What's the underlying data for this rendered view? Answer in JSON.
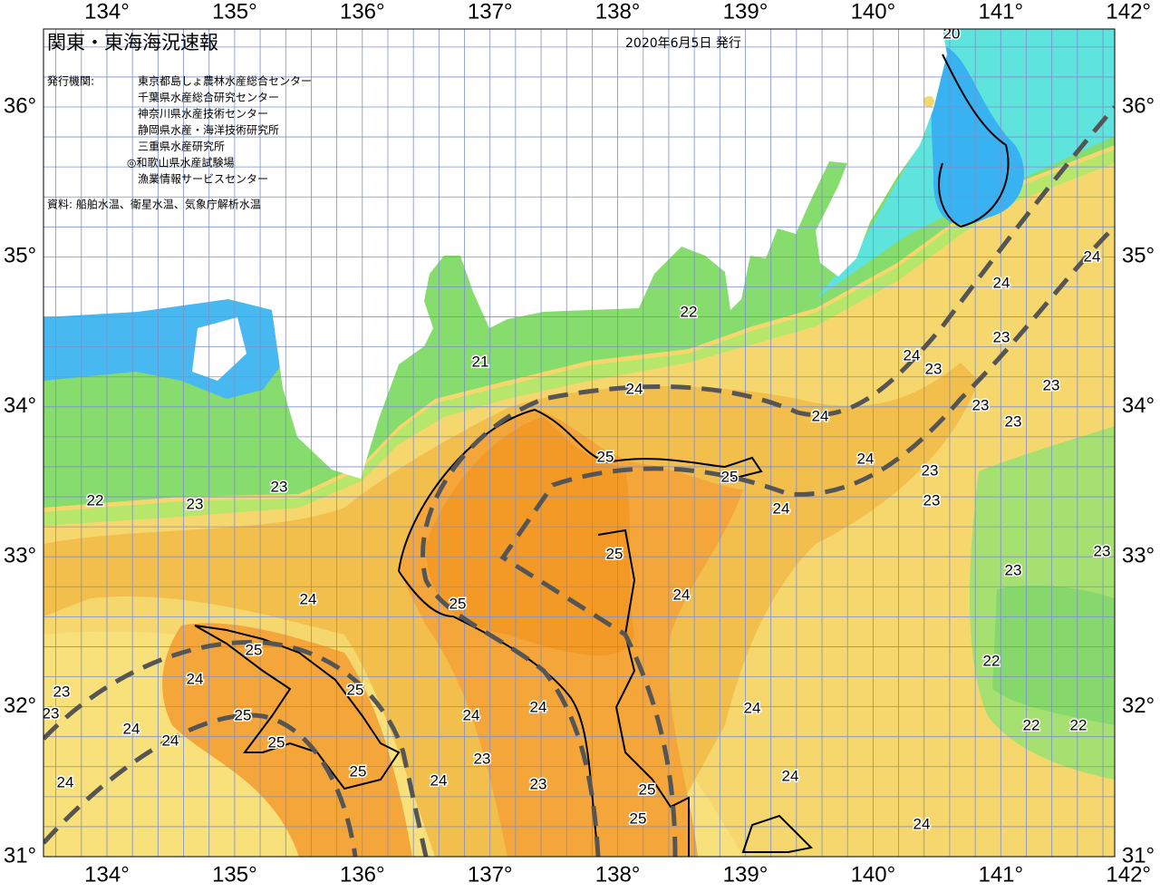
{
  "header": {
    "title": "関東・東海海況速報",
    "date": "2020年6月5日 発行"
  },
  "agencies": {
    "label": "発行機関:",
    "items": [
      "東京都島しょ農林水産総合センター",
      "千葉県水産総合研究センター",
      "神奈川県水産技術センター",
      "静岡県水産・海洋技術研究所",
      "三重県水産研究所",
      "◎和歌山県水産試験場",
      "漁業情報サービスセンター"
    ]
  },
  "source": "資料: 船舶水温、衛星水温、気象庁解析水温",
  "longitude_labels": [
    "134°",
    "135°",
    "136°",
    "137°",
    "138°",
    "139°",
    "140°",
    "141°",
    "142°"
  ],
  "latitude_labels": [
    "36°",
    "35°",
    "34°",
    "33°",
    "32°",
    "31°"
  ],
  "contour_labels": [
    "20",
    "22",
    "21",
    "24",
    "24",
    "25",
    "25",
    "24",
    "24",
    "22",
    "23",
    "23",
    "25",
    "24",
    "24",
    "25",
    "25",
    "24",
    "25",
    "24",
    "24",
    "24",
    "25",
    "24",
    "24",
    "25",
    "25",
    "23",
    "24",
    "23",
    "24",
    "25",
    "25",
    "24",
    "24",
    "24",
    "23",
    "24",
    "24",
    "23",
    "23",
    "23",
    "23",
    "23",
    "23",
    "23",
    "23",
    "22",
    "22",
    "22",
    "23",
    "23"
  ]
}
